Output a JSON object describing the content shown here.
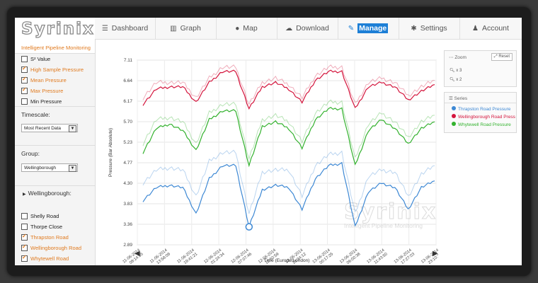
{
  "logo": {
    "wordmark": "Syrinix",
    "tagline": "Intelligent Pipeline Monitoring"
  },
  "nav": {
    "tabs": [
      {
        "label": "Dashboard",
        "icon": "hamburger-icon"
      },
      {
        "label": "Graph",
        "icon": "bar-chart-icon"
      },
      {
        "label": "Map",
        "icon": "globe-icon"
      },
      {
        "label": "Download",
        "icon": "cloud-download-icon"
      },
      {
        "label": "Manage",
        "icon": "edit-icon",
        "active": true
      },
      {
        "label": "Settings",
        "icon": "gear-icon"
      },
      {
        "label": "Account",
        "icon": "user-icon"
      }
    ]
  },
  "sidebar": {
    "measures": [
      {
        "label": "S² Value",
        "checked": false
      },
      {
        "label": "High Sample Pressure",
        "checked": true
      },
      {
        "label": "Mean Pressure",
        "checked": true
      },
      {
        "label": "Max Pressure",
        "checked": true
      },
      {
        "label": "Min Pressure",
        "checked": false
      }
    ],
    "timescale_label": "Timescale:",
    "timescale_value": "Most Recent Data",
    "group_label": "Group:",
    "group_value": "Wellingborough",
    "group_heading": "Wellingborough:",
    "sites": [
      {
        "label": "Shelly Road",
        "checked": false
      },
      {
        "label": "Thorpe Close",
        "checked": false
      },
      {
        "label": "Thrapston Road",
        "checked": true
      },
      {
        "label": "Wellingborough Road",
        "checked": true
      },
      {
        "label": "Whytewell Road",
        "checked": true
      }
    ]
  },
  "zoom": {
    "title": "Zoom",
    "reset": "Reset",
    "levels": [
      "x 3",
      "x 2"
    ]
  },
  "legend_panel": {
    "title": "Series"
  },
  "colors": {
    "blue": "#3d88d4",
    "red": "#d4143c",
    "green": "#33b22e",
    "accent": "#e07a1f",
    "active_tab": "#1d7fd6"
  },
  "watermark": {
    "word": "Syrinix",
    "tagline": "Intelligent Pipeline Monitoring"
  },
  "chart_data": {
    "type": "line",
    "ylabel": "Pressure (Bar Absolute)",
    "xlabel": "Time (Europe/London)",
    "ylim": [
      2.89,
      7.11
    ],
    "yticks": [
      "7.11",
      "6.64",
      "6.17",
      "5.70",
      "5.23",
      "4.77",
      "4.30",
      "3.83",
      "3.36",
      "2.89"
    ],
    "xticks": [
      [
        "11-06-2014",
        "08:14:55"
      ],
      [
        "11-06-2014",
        "13:58:08"
      ],
      [
        "11-06-2014",
        "19:41:21"
      ],
      [
        "12-06-2014",
        "01:24:34"
      ],
      [
        "12-06-2014",
        "07:07:46"
      ],
      [
        "12-06-2014",
        "12:50:59"
      ],
      [
        "12-06-2014",
        "18:34:12"
      ],
      [
        "13-06-2014",
        "00:17:25"
      ],
      [
        "13-06-2014",
        "06:00:38"
      ],
      [
        "13-06-2014",
        "11:43:50"
      ],
      [
        "13-06-2014",
        "17:27:03"
      ],
      [
        "13-06-2014",
        "23:10:16"
      ]
    ],
    "grid": true,
    "series": [
      {
        "name": "Thrapston Road Pressure",
        "color": "#3d88d4",
        "values": [
          3.9,
          4.2,
          4.25,
          4.2,
          3.6,
          4.4,
          4.7,
          4.7,
          3.3,
          4.15,
          4.25,
          4.2,
          3.7,
          4.4,
          4.7,
          4.75,
          3.3,
          4.1,
          4.3,
          4.2,
          3.7,
          4.2,
          4.35
        ],
        "upper": [
          4.3,
          4.6,
          4.65,
          4.6,
          4.0,
          4.8,
          5.0,
          5.0,
          3.6,
          4.55,
          4.6,
          4.6,
          4.0,
          4.7,
          4.95,
          5.0,
          3.6,
          4.45,
          4.6,
          4.55,
          4.0,
          4.5,
          4.7
        ]
      },
      {
        "name": "Wellingborough Road Press",
        "color": "#d4143c",
        "values": [
          6.1,
          6.45,
          6.5,
          6.5,
          6.15,
          6.6,
          6.85,
          6.85,
          6.0,
          6.5,
          6.6,
          6.45,
          6.15,
          6.65,
          6.85,
          6.85,
          6.0,
          6.5,
          6.6,
          6.5,
          6.2,
          6.4,
          6.55
        ],
        "upper": [
          6.25,
          6.6,
          6.6,
          6.6,
          6.25,
          6.7,
          6.95,
          6.95,
          6.1,
          6.6,
          6.7,
          6.55,
          6.25,
          6.75,
          6.95,
          6.95,
          6.1,
          6.6,
          6.7,
          6.6,
          6.3,
          6.5,
          6.65
        ]
      },
      {
        "name": "Whytewell Road Pressure",
        "color": "#33b22e",
        "values": [
          5.0,
          5.55,
          5.65,
          5.5,
          5.05,
          5.75,
          5.95,
          5.95,
          4.7,
          5.6,
          5.7,
          5.55,
          5.1,
          5.75,
          6.0,
          6.0,
          4.7,
          5.5,
          5.75,
          5.55,
          5.2,
          5.55,
          5.7
        ],
        "upper": [
          5.2,
          5.75,
          5.8,
          5.7,
          5.2,
          5.9,
          6.1,
          6.1,
          4.85,
          5.75,
          5.85,
          5.7,
          5.25,
          5.9,
          6.15,
          6.15,
          4.85,
          5.65,
          5.9,
          5.7,
          5.35,
          5.7,
          5.85
        ]
      }
    ]
  }
}
